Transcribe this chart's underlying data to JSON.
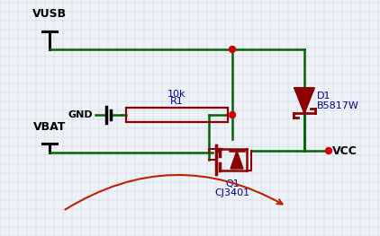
{
  "background_color": "#eef2f8",
  "grid_color": "#c5cfe0",
  "wire_color": "#006600",
  "component_color": "#8B0000",
  "text_color": "#00008B",
  "label_color": "#000000",
  "dot_color": "#CC0000",
  "arrow_color": "#BB2200",
  "vusb_label": "VUSB",
  "vbat_label": "VBAT",
  "vcc_label": "VCC",
  "gnd_label": "GND",
  "r1_label": "R1",
  "r1_value": "10k",
  "d1_label": "D1",
  "d1_value": "B5817W",
  "q1_label": "Q1",
  "q1_value": "CJ3401"
}
